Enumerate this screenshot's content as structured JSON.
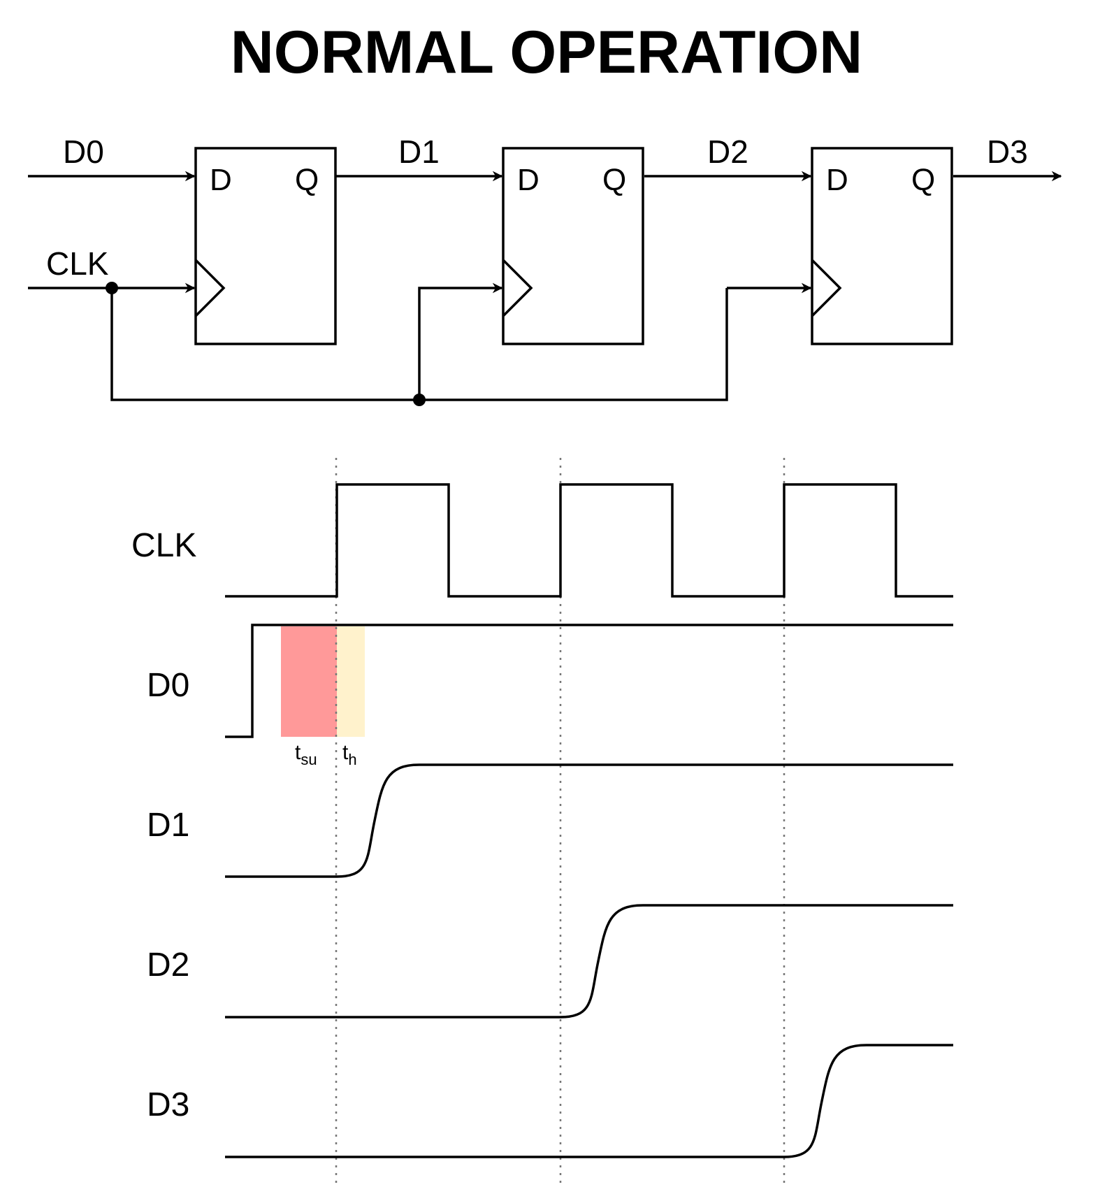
{
  "title": "NORMAL OPERATION",
  "circuit": {
    "input_label": "D0",
    "clock_label": "CLK",
    "wire_labels": [
      "D1",
      "D2",
      "D3"
    ],
    "flipflops": [
      {
        "d": "D",
        "q": "Q"
      },
      {
        "d": "D",
        "q": "Q"
      },
      {
        "d": "D",
        "q": "Q"
      }
    ]
  },
  "timing": {
    "signals": [
      {
        "label": "CLK"
      },
      {
        "label": "D0"
      },
      {
        "label": "D1"
      },
      {
        "label": "D2"
      },
      {
        "label": "D3"
      }
    ],
    "setup_label": "t",
    "setup_sub": "su",
    "hold_label": "t",
    "hold_sub": "h",
    "setup_color": "#ff9999",
    "hold_color": "#fff2cc"
  }
}
